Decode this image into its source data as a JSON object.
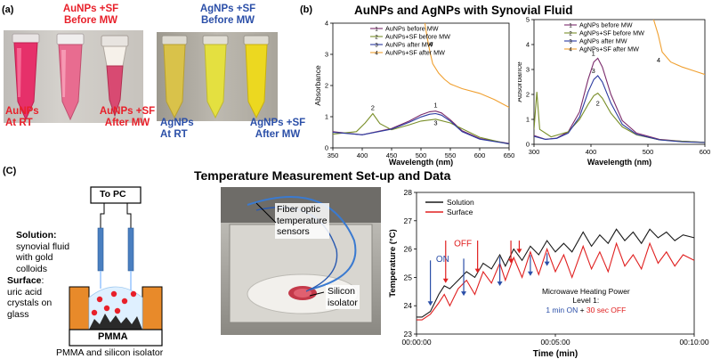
{
  "panel_a": {
    "label": "(a)",
    "au_np_rt": [
      "AuNPs",
      "At RT"
    ],
    "au_sf_before": [
      "AuNPs +SF",
      "Before MW"
    ],
    "au_sf_after": [
      "AuNPs +SF",
      "After MW"
    ],
    "ag_np_rt": [
      "AgNPs",
      "At RT"
    ],
    "ag_sf_before": [
      "AgNPs +SF",
      "Before MW"
    ],
    "ag_sf_after": [
      "AgNPs +SF",
      "After MW"
    ]
  },
  "panel_b": {
    "label": "(b)",
    "title": "AuNPs and AgNPs with Synovial Fluid",
    "ylabel_left": "Absorbance",
    "ylabel_right": "Absorbance"
  },
  "panel_c": {
    "label": "(C)",
    "title": "Temperature Measurement Set-up and Data",
    "to_pc": "To PC",
    "solution_title": "Solution:",
    "solution_lines": [
      "synovial fluid",
      "with gold",
      "colloids"
    ],
    "surface_title": "Surface",
    "surface_lines": [
      "uric acid",
      "crystals on",
      "glass"
    ],
    "pmma": "PMMA",
    "caption": "PMMA and silicon isolator",
    "fiber_label": [
      "Fiber optic",
      "temperature",
      "sensors"
    ],
    "silicon_label": [
      "Silicon",
      "isolator"
    ]
  },
  "colors": {
    "red": "#e8202a",
    "blue": "#2b4fa8",
    "pmma_orange": "#e88a2a",
    "black_line": "#1a1a1a",
    "red_line": "#e02020"
  },
  "chart_data": [
    {
      "type": "line",
      "xlabel": "Wavelength (nm)",
      "ylabel": "Absorbance",
      "xlim": [
        350,
        650
      ],
      "ylim": [
        0,
        4
      ],
      "xticks": [
        350,
        400,
        450,
        500,
        550,
        600,
        650
      ],
      "yticks": [
        0,
        1,
        2,
        3,
        4
      ],
      "legend_position": "top-left",
      "series": [
        {
          "name": "AuNPs before MW",
          "marker": "1",
          "color": "#7b2b6b",
          "x": [
            350,
            400,
            450,
            480,
            500,
            515,
            525,
            535,
            550,
            570,
            600,
            650
          ],
          "y": [
            0.52,
            0.42,
            0.62,
            0.86,
            1.06,
            1.16,
            1.18,
            1.12,
            0.9,
            0.55,
            0.3,
            0.14
          ]
        },
        {
          "name": "AuNPs+SF before MW",
          "marker": "2",
          "color": "#7a8f2a",
          "x": [
            350,
            390,
            405,
            418,
            430,
            450,
            480,
            500,
            525,
            550,
            600,
            650
          ],
          "y": [
            0.44,
            0.52,
            0.8,
            1.1,
            0.78,
            0.58,
            0.74,
            0.86,
            0.92,
            0.8,
            0.34,
            0.12
          ]
        },
        {
          "name": "AuNPs after MW",
          "marker": "3",
          "color": "#2b3aa0",
          "x": [
            350,
            400,
            450,
            480,
            500,
            515,
            525,
            535,
            550,
            570,
            600,
            650
          ],
          "y": [
            0.5,
            0.42,
            0.6,
            0.82,
            0.99,
            1.08,
            1.1,
            1.05,
            0.86,
            0.52,
            0.28,
            0.13
          ]
        },
        {
          "name": "AuNPs+SF after MW",
          "marker": "4",
          "color": "#f0a030",
          "x": [
            505,
            510,
            515,
            520,
            530,
            540,
            550,
            570,
            600,
            625,
            650
          ],
          "y": [
            4.2,
            3.6,
            3.1,
            2.7,
            2.4,
            2.2,
            2.05,
            1.9,
            1.75,
            1.55,
            1.3
          ]
        }
      ]
    },
    {
      "type": "line",
      "xlabel": "Wavelength (nm)",
      "ylabel": "Absorbance",
      "xlim": [
        300,
        600
      ],
      "ylim": [
        0,
        5
      ],
      "xticks": [
        300,
        400,
        500,
        600
      ],
      "yticks": [
        0,
        1,
        2,
        3,
        4,
        5
      ],
      "legend_position": "top-left",
      "series": [
        {
          "name": "AgNPs before MW",
          "marker": "1",
          "color": "#7b2b6b",
          "x": [
            300,
            320,
            340,
            360,
            380,
            395,
            405,
            412,
            420,
            435,
            455,
            480,
            520,
            560,
            600
          ],
          "y": [
            0.35,
            0.2,
            0.25,
            0.5,
            1.3,
            2.6,
            3.3,
            3.45,
            3.1,
            2.0,
            0.95,
            0.45,
            0.2,
            0.12,
            0.08
          ]
        },
        {
          "name": "AgNPs+SF before MW",
          "marker": "2",
          "color": "#7a8f2a",
          "x": [
            300,
            305,
            310,
            330,
            360,
            380,
            395,
            405,
            412,
            420,
            435,
            455,
            480,
            520,
            560,
            600
          ],
          "y": [
            0.6,
            2.1,
            0.6,
            0.3,
            0.5,
            1.0,
            1.6,
            1.95,
            2.05,
            1.85,
            1.25,
            0.7,
            0.38,
            0.18,
            0.12,
            0.08
          ]
        },
        {
          "name": "AgNPs after MW",
          "marker": "3",
          "color": "#2b3aa0",
          "x": [
            300,
            320,
            340,
            360,
            380,
            395,
            405,
            412,
            420,
            435,
            455,
            480,
            520,
            560,
            600
          ],
          "y": [
            0.32,
            0.2,
            0.24,
            0.45,
            1.1,
            2.1,
            2.6,
            2.75,
            2.5,
            1.65,
            0.8,
            0.4,
            0.18,
            0.1,
            0.07
          ]
        },
        {
          "name": "AgNPs+SF after MW",
          "marker": "4",
          "color": "#f0a030",
          "x": [
            500,
            510,
            518,
            525,
            540,
            560,
            580,
            600
          ],
          "y": [
            5.2,
            5.0,
            4.4,
            3.7,
            3.3,
            3.1,
            2.95,
            2.8
          ]
        }
      ]
    },
    {
      "type": "line",
      "xlabel": "Time (min)",
      "ylabel": "Temperature (°C)",
      "xlim": [
        0,
        10
      ],
      "ylim": [
        23,
        28
      ],
      "xticks": [
        0,
        5,
        10
      ],
      "xtick_labels": [
        "00:00:00",
        "00:05:00",
        "00:10:00"
      ],
      "yticks": [
        23,
        24,
        25,
        26,
        27,
        28
      ],
      "legend_position": "top-left",
      "annotations": {
        "on": "ON",
        "off": "OFF",
        "power_title": [
          "Microwave Heating Power",
          "Level 1:"
        ],
        "power_on": "1 min ON",
        "power_plus": " + ",
        "power_off": "30 sec OFF"
      },
      "on_arrows_min": [
        0.5,
        1.7,
        3.0,
        4.1,
        4.7
      ],
      "off_arrows_min": [
        1.05,
        2.2,
        3.4,
        3.7
      ],
      "series": [
        {
          "name": "Solution",
          "color": "#1a1a1a",
          "x": [
            0,
            0.2,
            0.5,
            0.8,
            1.0,
            1.2,
            1.5,
            1.8,
            2.1,
            2.4,
            2.7,
            3.0,
            3.2,
            3.5,
            3.8,
            4.1,
            4.4,
            4.7,
            5.0,
            5.3,
            5.6,
            6.0,
            6.3,
            6.6,
            6.9,
            7.2,
            7.5,
            7.8,
            8.1,
            8.4,
            8.7,
            9.0,
            9.3,
            9.6,
            10.0
          ],
          "y": [
            23.6,
            23.6,
            23.8,
            24.4,
            24.7,
            24.6,
            24.9,
            25.2,
            25.0,
            25.5,
            25.3,
            25.8,
            25.4,
            26.0,
            25.6,
            26.1,
            25.8,
            26.3,
            25.9,
            26.2,
            25.9,
            26.6,
            26.1,
            26.5,
            26.2,
            26.7,
            26.3,
            26.6,
            26.2,
            26.7,
            26.4,
            26.6,
            26.3,
            26.5,
            26.4
          ]
        },
        {
          "name": "Surface",
          "color": "#e02020",
          "x": [
            0,
            0.2,
            0.5,
            0.8,
            1.0,
            1.2,
            1.5,
            1.8,
            2.1,
            2.4,
            2.7,
            3.0,
            3.2,
            3.5,
            3.8,
            4.1,
            4.4,
            4.7,
            5.0,
            5.3,
            5.6,
            6.0,
            6.3,
            6.6,
            6.9,
            7.2,
            7.5,
            7.8,
            8.1,
            8.4,
            8.7,
            9.0,
            9.3,
            9.6,
            10.0
          ],
          "y": [
            23.5,
            23.5,
            23.7,
            24.1,
            24.4,
            24.0,
            24.6,
            24.9,
            24.4,
            25.2,
            24.8,
            25.5,
            24.9,
            25.7,
            25.0,
            25.9,
            25.1,
            26.0,
            25.2,
            25.8,
            25.0,
            26.1,
            25.3,
            25.9,
            25.2,
            26.2,
            25.4,
            25.8,
            25.3,
            26.2,
            25.5,
            25.9,
            25.4,
            25.8,
            25.6
          ]
        }
      ]
    }
  ]
}
